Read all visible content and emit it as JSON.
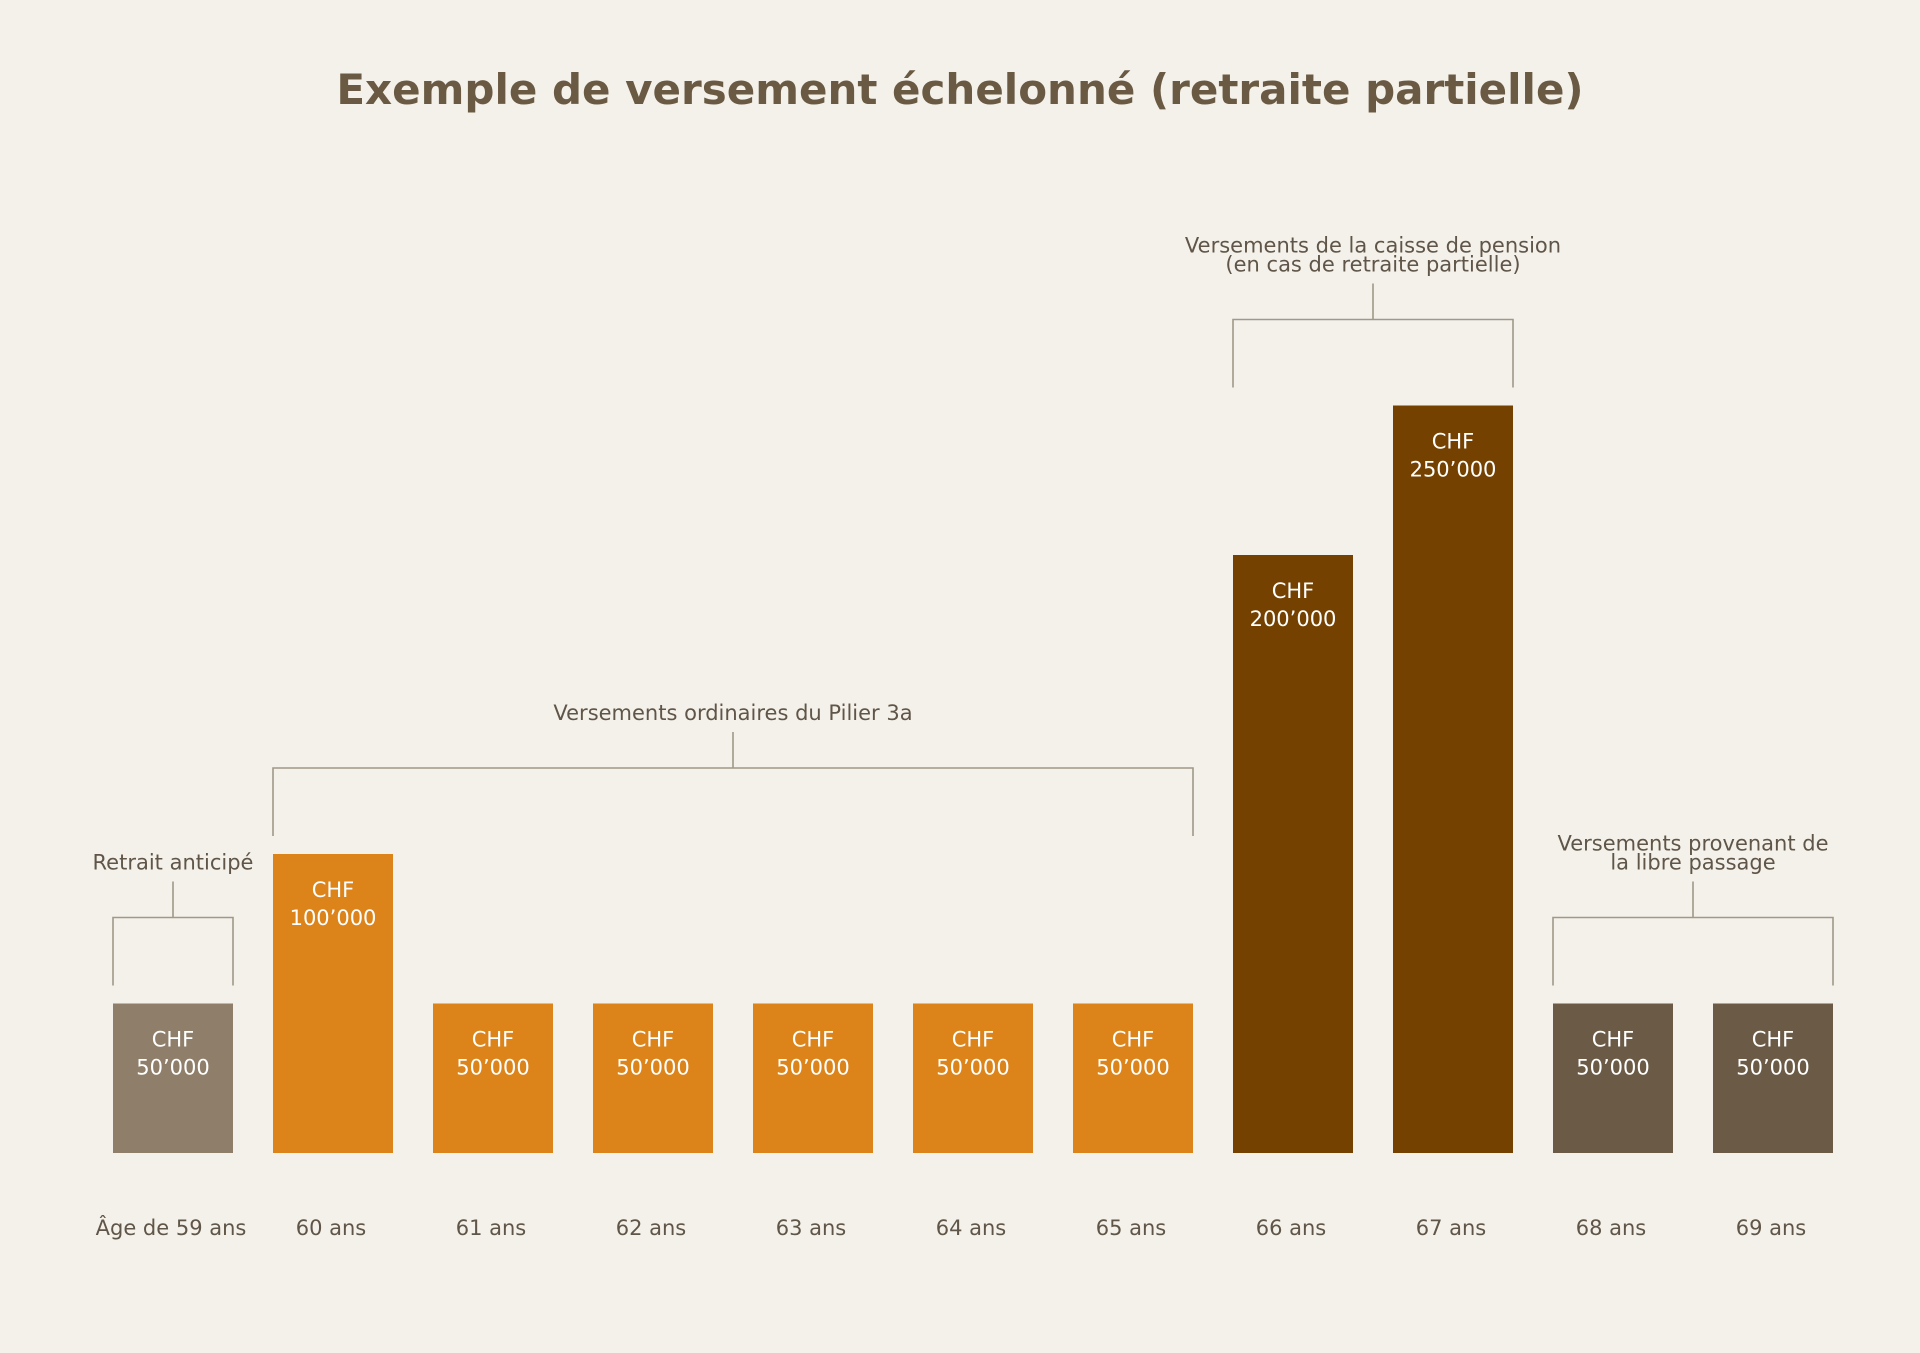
{
  "chart_data": {
    "type": "bar",
    "title": "Exemple de versement échelonné (retraite partielle)",
    "categories": [
      "Âge de 59 ans",
      "60 ans",
      "61 ans",
      "62 ans",
      "63 ans",
      "64 ans",
      "65 ans",
      "66 ans",
      "67 ans",
      "68 ans",
      "69 ans"
    ],
    "values": [
      50000,
      100000,
      50000,
      50000,
      50000,
      50000,
      50000,
      200000,
      250000,
      50000,
      50000
    ],
    "bar_labels": [
      [
        "CHF",
        "50’000"
      ],
      [
        "CHF",
        "100’000"
      ],
      [
        "CHF",
        "50’000"
      ],
      [
        "CHF",
        "50’000"
      ],
      [
        "CHF",
        "50’000"
      ],
      [
        "CHF",
        "50’000"
      ],
      [
        "CHF",
        "50’000"
      ],
      [
        "CHF",
        "200’000"
      ],
      [
        "CHF",
        "250’000"
      ],
      [
        "CHF",
        "50’000"
      ],
      [
        "CHF",
        "50’000"
      ]
    ],
    "ylim": [
      0,
      250000
    ],
    "grid": false,
    "groups": [
      {
        "lines": [
          "Retrait anticipé"
        ],
        "from": 0,
        "to": 0,
        "color": "#8f7e69"
      },
      {
        "lines": [
          "Versements ordinaires du Pilier 3a"
        ],
        "from": 1,
        "to": 6,
        "color": "#dc8319"
      },
      {
        "lines": [
          "Versements de la caisse de pension",
          "(en cas de retraite partielle)"
        ],
        "from": 7,
        "to": 8,
        "color": "#744100"
      },
      {
        "lines": [
          "Versements provenant de",
          "la libre passage"
        ],
        "from": 9,
        "to": 10,
        "color": "#6a5a46"
      }
    ]
  }
}
